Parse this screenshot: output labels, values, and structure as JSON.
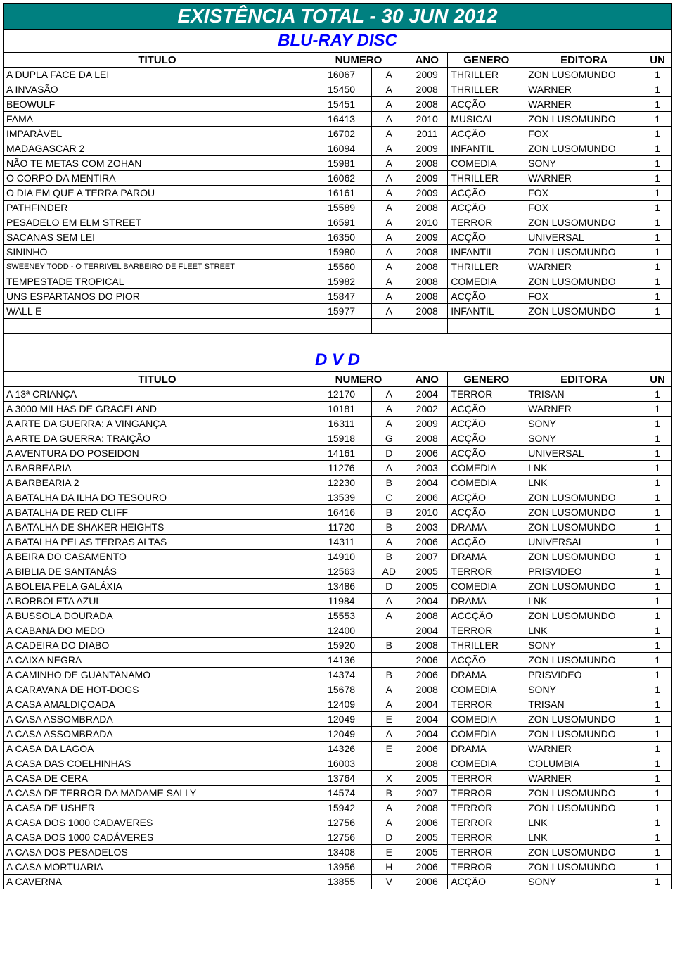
{
  "page_title": "EXISTÊNCIA TOTAL - 30 JUN 2012",
  "colors": {
    "header_bg": "#008080",
    "header_fg": "#ffffff",
    "section_fg": "#0000ff",
    "border": "#000000"
  },
  "columns": [
    "TITULO",
    "NUMERO",
    "ANO",
    "GENERO",
    "EDITORA",
    "UN"
  ],
  "sections": [
    {
      "title": "BLU-RAY DISC",
      "rows": [
        {
          "titulo": "A DUPLA FACE DA LEI",
          "numero": "16067",
          "code": "A",
          "ano": "2009",
          "genero": "THRILLER",
          "editora": "ZON LUSOMUNDO",
          "un": "1"
        },
        {
          "titulo": "A INVASÃO",
          "numero": "15450",
          "code": "A",
          "ano": "2008",
          "genero": "THRILLER",
          "editora": "WARNER",
          "un": "1"
        },
        {
          "titulo": "BEOWULF",
          "numero": "15451",
          "code": "A",
          "ano": "2008",
          "genero": "ACÇÃO",
          "editora": "WARNER",
          "un": "1"
        },
        {
          "titulo": "FAMA",
          "numero": "16413",
          "code": "A",
          "ano": "2010",
          "genero": "MUSICAL",
          "editora": "ZON LUSOMUNDO",
          "un": "1"
        },
        {
          "titulo": "IMPARÁVEL",
          "numero": "16702",
          "code": "A",
          "ano": "2011",
          "genero": "ACÇÃO",
          "editora": "FOX",
          "un": "1"
        },
        {
          "titulo": "MADAGASCAR 2",
          "numero": "16094",
          "code": "A",
          "ano": "2009",
          "genero": "INFANTIL",
          "editora": "ZON LUSOMUNDO",
          "un": "1"
        },
        {
          "titulo": "NÃO TE METAS COM ZOHAN",
          "numero": "15981",
          "code": "A",
          "ano": "2008",
          "genero": "COMEDIA",
          "editora": "SONY",
          "un": "1"
        },
        {
          "titulo": "O CORPO DA MENTIRA",
          "numero": "16062",
          "code": "A",
          "ano": "2009",
          "genero": "THRILLER",
          "editora": "WARNER",
          "un": "1"
        },
        {
          "titulo": "O DIA EM QUE A TERRA PAROU",
          "numero": "16161",
          "code": "A",
          "ano": "2009",
          "genero": "ACÇÃO",
          "editora": "FOX",
          "un": "1"
        },
        {
          "titulo": "PATHFINDER",
          "numero": "15589",
          "code": "A",
          "ano": "2008",
          "genero": "ACÇÃO",
          "editora": "FOX",
          "un": "1"
        },
        {
          "titulo": "PESADELO EM ELM STREET",
          "numero": "16591",
          "code": "A",
          "ano": "2010",
          "genero": "TERROR",
          "editora": "ZON LUSOMUNDO",
          "un": "1"
        },
        {
          "titulo": "SACANAS SEM LEI",
          "numero": "16350",
          "code": "A",
          "ano": "2009",
          "genero": "ACÇÃO",
          "editora": "UNIVERSAL",
          "un": "1"
        },
        {
          "titulo": "SININHO",
          "numero": "15980",
          "code": "A",
          "ano": "2008",
          "genero": "INFANTIL",
          "editora": "ZON LUSOMUNDO",
          "un": "1"
        },
        {
          "titulo": "SWEENEY TODD - O TERRIVEL BARBEIRO DE FLEET STREET",
          "numero": "15560",
          "code": "A",
          "ano": "2008",
          "genero": "THRILLER",
          "editora": "WARNER",
          "un": "1",
          "small": true
        },
        {
          "titulo": "TEMPESTADE TROPICAL",
          "numero": "15982",
          "code": "A",
          "ano": "2008",
          "genero": "COMEDIA",
          "editora": "ZON LUSOMUNDO",
          "un": "1"
        },
        {
          "titulo": "UNS ESPARTANOS DO PIOR",
          "numero": "15847",
          "code": "A",
          "ano": "2008",
          "genero": "ACÇÃO",
          "editora": "FOX",
          "un": "1"
        },
        {
          "titulo": "WALL E",
          "numero": "15977",
          "code": "A",
          "ano": "2008",
          "genero": "INFANTIL",
          "editora": "ZON LUSOMUNDO",
          "un": "1"
        }
      ],
      "trailing_empty_row": true
    },
    {
      "title": "D V D",
      "rows": [
        {
          "titulo": "A 13ª CRIANÇA",
          "numero": "12170",
          "code": "A",
          "ano": "2004",
          "genero": "TERROR",
          "editora": "TRISAN",
          "un": "1"
        },
        {
          "titulo": "A 3000 MILHAS DE GRACELAND",
          "numero": "10181",
          "code": "A",
          "ano": "2002",
          "genero": "ACÇÃO",
          "editora": "WARNER",
          "un": "1"
        },
        {
          "titulo": "A ARTE DA GUERRA: A VINGANÇA",
          "numero": "16311",
          "code": "A",
          "ano": "2009",
          "genero": "ACÇÃO",
          "editora": "SONY",
          "un": "1"
        },
        {
          "titulo": "A ARTE DA GUERRA: TRAIÇÃO",
          "numero": "15918",
          "code": "G",
          "ano": "2008",
          "genero": "ACÇÃO",
          "editora": "SONY",
          "un": "1"
        },
        {
          "titulo": "A AVENTURA DO POSEIDON",
          "numero": "14161",
          "code": "D",
          "ano": "2006",
          "genero": "ACÇÃO",
          "editora": "UNIVERSAL",
          "un": "1"
        },
        {
          "titulo": "A BARBEARIA",
          "numero": "11276",
          "code": "A",
          "ano": "2003",
          "genero": "COMEDIA",
          "editora": "LNK",
          "un": "1"
        },
        {
          "titulo": "A BARBEARIA 2",
          "numero": "12230",
          "code": "B",
          "ano": "2004",
          "genero": "COMEDIA",
          "editora": "LNK",
          "un": "1"
        },
        {
          "titulo": "A BATALHA DA ILHA DO TESOURO",
          "numero": "13539",
          "code": "C",
          "ano": "2006",
          "genero": "ACÇÃO",
          "editora": "ZON LUSOMUNDO",
          "un": "1"
        },
        {
          "titulo": "A BATALHA DE RED CLIFF",
          "numero": "16416",
          "code": "B",
          "ano": "2010",
          "genero": "ACÇÃO",
          "editora": "ZON LUSOMUNDO",
          "un": "1"
        },
        {
          "titulo": "A BATALHA DE SHAKER HEIGHTS",
          "numero": "11720",
          "code": "B",
          "ano": "2003",
          "genero": "DRAMA",
          "editora": "ZON LUSOMUNDO",
          "un": "1"
        },
        {
          "titulo": "A BATALHA PELAS TERRAS ALTAS",
          "numero": "14311",
          "code": "A",
          "ano": "2006",
          "genero": "ACÇÃO",
          "editora": "UNIVERSAL",
          "un": "1"
        },
        {
          "titulo": "A BEIRA DO CASAMENTO",
          "numero": "14910",
          "code": "B",
          "ano": "2007",
          "genero": "DRAMA",
          "editora": "ZON LUSOMUNDO",
          "un": "1"
        },
        {
          "titulo": "A BIBLIA DE SANTANÁS",
          "numero": "12563",
          "code": "AD",
          "ano": "2005",
          "genero": "TERROR",
          "editora": "PRISVIDEO",
          "un": "1"
        },
        {
          "titulo": "A BOLEIA PELA GALÁXIA",
          "numero": "13486",
          "code": "D",
          "ano": "2005",
          "genero": "COMEDIA",
          "editora": "ZON LUSOMUNDO",
          "un": "1"
        },
        {
          "titulo": "A BORBOLETA AZUL",
          "numero": "11984",
          "code": "A",
          "ano": "2004",
          "genero": "DRAMA",
          "editora": "LNK",
          "un": "1"
        },
        {
          "titulo": "A BUSSOLA DOURADA",
          "numero": "15553",
          "code": "A",
          "ano": "2008",
          "genero": "ACCÇÃO",
          "editora": "ZON LUSOMUNDO",
          "un": "1"
        },
        {
          "titulo": "A CABANA DO MEDO",
          "numero": "12400",
          "code": "",
          "ano": "2004",
          "genero": "TERROR",
          "editora": "LNK",
          "un": "1"
        },
        {
          "titulo": "A CADEIRA DO DIABO",
          "numero": "15920",
          "code": "B",
          "ano": "2008",
          "genero": "THRILLER",
          "editora": "SONY",
          "un": "1"
        },
        {
          "titulo": "A CAIXA NEGRA",
          "numero": "14136",
          "code": "",
          "ano": "2006",
          "genero": "ACÇÃO",
          "editora": "ZON LUSOMUNDO",
          "un": "1"
        },
        {
          "titulo": "A CAMINHO DE GUANTANAMO",
          "numero": "14374",
          "code": "B",
          "ano": "2006",
          "genero": "DRAMA",
          "editora": "PRISVIDEO",
          "un": "1"
        },
        {
          "titulo": "A CARAVANA DE HOT-DOGS",
          "numero": "15678",
          "code": "A",
          "ano": "2008",
          "genero": "COMEDIA",
          "editora": "SONY",
          "un": "1"
        },
        {
          "titulo": "A CASA AMALDIÇOADA",
          "numero": "12409",
          "code": "A",
          "ano": "2004",
          "genero": "TERROR",
          "editora": "TRISAN",
          "un": "1"
        },
        {
          "titulo": "A CASA ASSOMBRADA",
          "numero": "12049",
          "code": "E",
          "ano": "2004",
          "genero": "COMEDIA",
          "editora": "ZON LUSOMUNDO",
          "un": "1"
        },
        {
          "titulo": "A CASA ASSOMBRADA",
          "numero": "12049",
          "code": "A",
          "ano": "2004",
          "genero": "COMEDIA",
          "editora": "ZON LUSOMUNDO",
          "un": "1"
        },
        {
          "titulo": "A CASA DA LAGOA",
          "numero": "14326",
          "code": "E",
          "ano": "2006",
          "genero": "DRAMA",
          "editora": "WARNER",
          "un": "1"
        },
        {
          "titulo": "A CASA DAS COELHINHAS",
          "numero": "16003",
          "code": "",
          "ano": "2008",
          "genero": "COMEDIA",
          "editora": "COLUMBIA",
          "un": "1"
        },
        {
          "titulo": "A CASA DE CERA",
          "numero": "13764",
          "code": "X",
          "ano": "2005",
          "genero": "TERROR",
          "editora": "WARNER",
          "un": "1"
        },
        {
          "titulo": "A CASA DE TERROR DA MADAME SALLY",
          "numero": "14574",
          "code": "B",
          "ano": "2007",
          "genero": "TERROR",
          "editora": "ZON LUSOMUNDO",
          "un": "1"
        },
        {
          "titulo": "A CASA DE USHER",
          "numero": "15942",
          "code": "A",
          "ano": "2008",
          "genero": "TERROR",
          "editora": "ZON LUSOMUNDO",
          "un": "1"
        },
        {
          "titulo": "A CASA DOS 1000 CADAVERES",
          "numero": "12756",
          "code": "A",
          "ano": "2006",
          "genero": "TERROR",
          "editora": "LNK",
          "un": "1"
        },
        {
          "titulo": "A CASA DOS 1000 CADÁVERES",
          "numero": "12756",
          "code": "D",
          "ano": "2005",
          "genero": "TERROR",
          "editora": "LNK",
          "un": "1"
        },
        {
          "titulo": "A CASA DOS PESADELOS",
          "numero": "13408",
          "code": "E",
          "ano": "2005",
          "genero": "TERROR",
          "editora": "ZON LUSOMUNDO",
          "un": "1"
        },
        {
          "titulo": "A CASA MORTUARIA",
          "numero": "13956",
          "code": "H",
          "ano": "2006",
          "genero": "TERROR",
          "editora": "ZON LUSOMUNDO",
          "un": "1"
        },
        {
          "titulo": "A CAVERNA",
          "numero": "13855",
          "code": "V",
          "ano": "2006",
          "genero": "ACÇÃO",
          "editora": "SONY",
          "un": "1"
        }
      ]
    }
  ]
}
